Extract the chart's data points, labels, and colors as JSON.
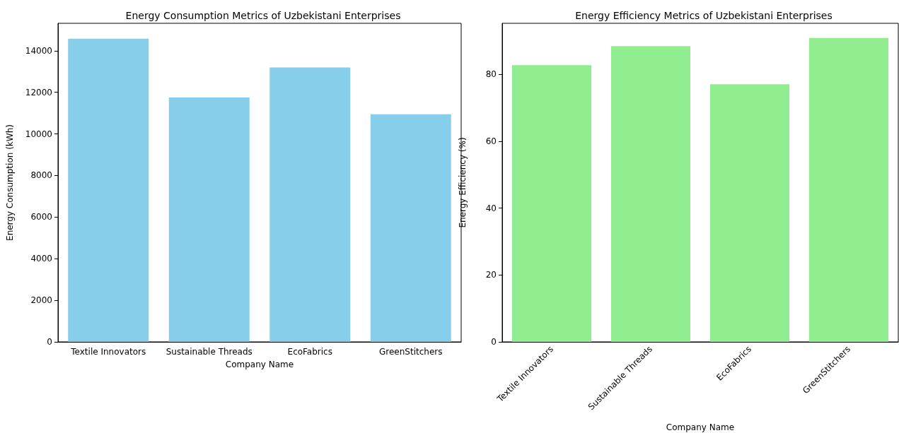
{
  "chart_data": [
    {
      "type": "bar",
      "title": "Energy Consumption Metrics of Uzbekistani Enterprises",
      "xlabel": "Company Name",
      "ylabel": "Energy Consumption (kWh)",
      "categories": [
        "Textile Innovators",
        "Sustainable Threads",
        "EcoFabrics",
        "GreenStitchers"
      ],
      "values": [
        14580,
        11750,
        13200,
        10950
      ],
      "color": "#87ceeb",
      "ylim": [
        0,
        15320
      ],
      "yticks": [
        0,
        2000,
        4000,
        6000,
        8000,
        10000,
        12000,
        14000
      ],
      "grid": false
    },
    {
      "type": "bar",
      "title": "Energy Efficiency Metrics of Uzbekistani Enterprises",
      "xlabel": "Company Name",
      "ylabel": "Energy Efficiency (%)",
      "categories": [
        "Textile Innovators",
        "Sustainable Threads",
        "EcoFabrics",
        "GreenStitchers"
      ],
      "values": [
        82.7,
        88.4,
        77.0,
        90.8
      ],
      "color": "#90ee90",
      "ylim": [
        0,
        95.2
      ],
      "yticks": [
        0,
        20,
        40,
        60,
        80
      ],
      "grid": false
    }
  ]
}
